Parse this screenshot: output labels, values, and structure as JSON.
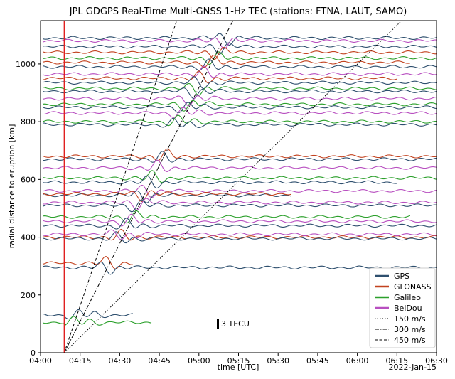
{
  "chart_data": {
    "type": "line",
    "title": "JPL GDGPS Real-Time Multi-GNSS 1-Hz TEC (stations: FTNA, LAUT, SAMO)",
    "xlabel": "time [UTC]",
    "ylabel": "radial distance to eruption [km]",
    "date_label": "2022-Jan-15",
    "x_ticks": [
      "04:00",
      "04:15",
      "04:30",
      "04:45",
      "05:00",
      "05:15",
      "05:30",
      "05:45",
      "06:00",
      "06:15",
      "06:30"
    ],
    "y_ticks": [
      "0",
      "200",
      "400",
      "600",
      "800",
      "1000"
    ],
    "xlim_minutes": [
      0,
      150
    ],
    "ylim": [
      0,
      1150
    ],
    "grid": false,
    "eruption_time_minutes": 9,
    "scale_bar_label": "3 TECU",
    "legend_position": "lower-right",
    "legend": [
      {
        "label": "GPS",
        "style": "solid",
        "color": "#2e4f6e"
      },
      {
        "label": "GLONASS",
        "style": "solid",
        "color": "#c2421f"
      },
      {
        "label": "Galileo",
        "style": "solid",
        "color": "#2ca02c"
      },
      {
        "label": "BeiDou",
        "style": "solid",
        "color": "#b84fc0"
      },
      {
        "label": "150 m/s",
        "style": "dotted",
        "color": "#000000"
      },
      {
        "label": "300 m/s",
        "style": "dashdot",
        "color": "#000000"
      },
      {
        "label": "450 m/s",
        "style": "dashed",
        "color": "#000000"
      }
    ],
    "speed_lines_m_per_s": [
      150,
      300,
      450
    ],
    "series": [
      {
        "system": "GPS",
        "distance_km": 1090,
        "start": 1,
        "end": 150
      },
      {
        "system": "BeiDou",
        "distance_km": 1080,
        "start": 1,
        "end": 150
      },
      {
        "system": "GPS",
        "distance_km": 1060,
        "start": 1,
        "end": 150
      },
      {
        "system": "GLONASS",
        "distance_km": 1040,
        "start": 1,
        "end": 150
      },
      {
        "system": "Galileo",
        "distance_km": 1020,
        "start": 1,
        "end": 150
      },
      {
        "system": "GLONASS",
        "distance_km": 1005,
        "start": 1,
        "end": 140
      },
      {
        "system": "GPS",
        "distance_km": 990,
        "start": 1,
        "end": 150
      },
      {
        "system": "BeiDou",
        "distance_km": 965,
        "start": 1,
        "end": 150
      },
      {
        "system": "GLONASS",
        "distance_km": 950,
        "start": 1,
        "end": 135
      },
      {
        "system": "GPS",
        "distance_km": 935,
        "start": 1,
        "end": 150
      },
      {
        "system": "Galileo",
        "distance_km": 915,
        "start": 1,
        "end": 150
      },
      {
        "system": "GPS",
        "distance_km": 905,
        "start": 1,
        "end": 150
      },
      {
        "system": "BeiDou",
        "distance_km": 880,
        "start": 1,
        "end": 150
      },
      {
        "system": "Galileo",
        "distance_km": 860,
        "start": 1,
        "end": 150
      },
      {
        "system": "GPS",
        "distance_km": 850,
        "start": 1,
        "end": 150
      },
      {
        "system": "BeiDou",
        "distance_km": 830,
        "start": 1,
        "end": 150
      },
      {
        "system": "Galileo",
        "distance_km": 800,
        "start": 1,
        "end": 150
      },
      {
        "system": "GPS",
        "distance_km": 790,
        "start": 1,
        "end": 150
      },
      {
        "system": "GLONASS",
        "distance_km": 680,
        "start": 1,
        "end": 150
      },
      {
        "system": "GPS",
        "distance_km": 670,
        "start": 1,
        "end": 150
      },
      {
        "system": "BeiDou",
        "distance_km": 640,
        "start": 1,
        "end": 150
      },
      {
        "system": "Galileo",
        "distance_km": 605,
        "start": 1,
        "end": 150
      },
      {
        "system": "GPS",
        "distance_km": 590,
        "start": 1,
        "end": 135
      },
      {
        "system": "BeiDou",
        "distance_km": 560,
        "start": 1,
        "end": 150
      },
      {
        "system": "GPS",
        "distance_km": 545,
        "start": 1,
        "end": 95
      },
      {
        "system": "GLONASS",
        "distance_km": 550,
        "start": 1,
        "end": 95
      },
      {
        "system": "BeiDou",
        "distance_km": 520,
        "start": 1,
        "end": 150
      },
      {
        "system": "GPS",
        "distance_km": 510,
        "start": 1,
        "end": 150
      },
      {
        "system": "Galileo",
        "distance_km": 470,
        "start": 1,
        "end": 140
      },
      {
        "system": "BeiDou",
        "distance_km": 455,
        "start": 1,
        "end": 150
      },
      {
        "system": "GPS",
        "distance_km": 440,
        "start": 1,
        "end": 150
      },
      {
        "system": "GLONASS",
        "distance_km": 400,
        "start": 1,
        "end": 150
      },
      {
        "system": "GPS",
        "distance_km": 395,
        "start": 1,
        "end": 150
      },
      {
        "system": "BeiDou",
        "distance_km": 410,
        "start": 1,
        "end": 150
      },
      {
        "system": "GLONASS",
        "distance_km": 310,
        "start": 1,
        "end": 35
      },
      {
        "system": "GPS",
        "distance_km": 295,
        "start": 1,
        "end": 150
      },
      {
        "system": "GPS",
        "distance_km": 130,
        "start": 1,
        "end": 35
      },
      {
        "system": "Galileo",
        "distance_km": 105,
        "start": 1,
        "end": 42
      }
    ]
  }
}
